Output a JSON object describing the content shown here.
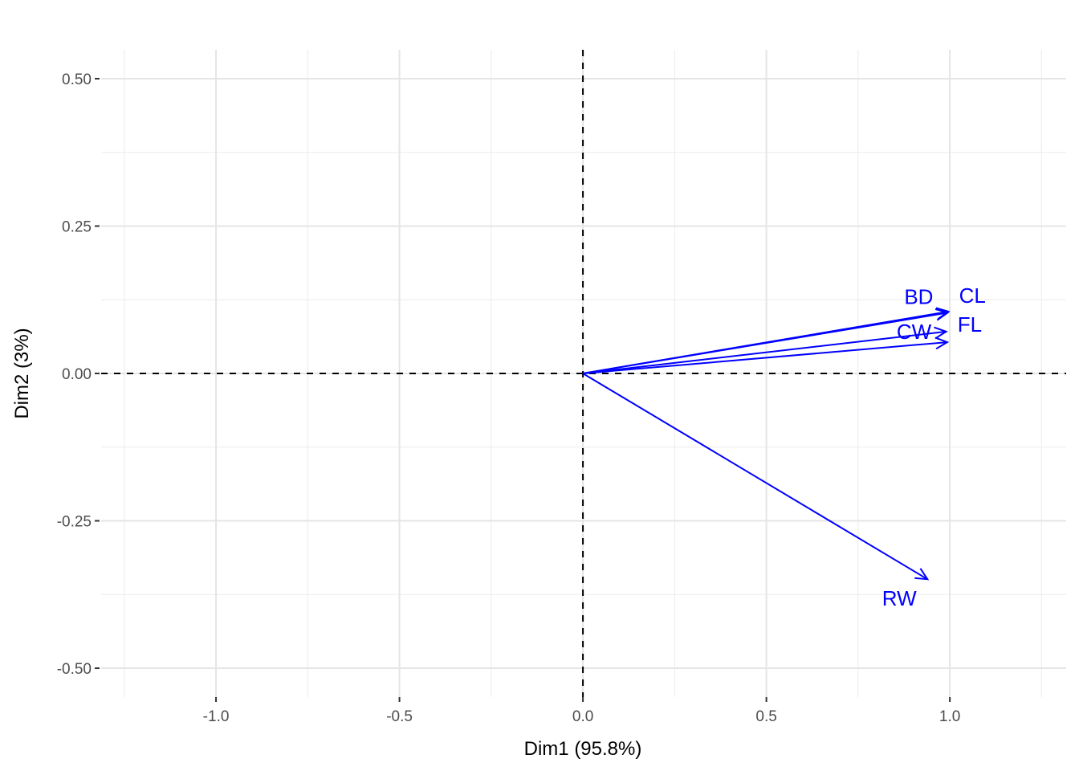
{
  "chart_data": {
    "type": "vector",
    "title": "",
    "xlabel": "Dim1 (95.8%)",
    "ylabel": "Dim2 (3%)",
    "xlim": [
      -1.313,
      1.317
    ],
    "ylim": [
      -0.549,
      0.549
    ],
    "xticks": [
      -1.0,
      -0.5,
      0.0,
      0.5,
      1.0
    ],
    "xtick_labels": [
      "-1.0",
      "-0.5",
      "0.0",
      "0.5",
      "1.0"
    ],
    "yticks": [
      -0.5,
      -0.25,
      0.0,
      0.25,
      0.5
    ],
    "ytick_labels": [
      "-0.50",
      "-0.25",
      "0.00",
      "0.25",
      "0.50"
    ],
    "grid": true,
    "arrow_color": "#0000FF",
    "vectors": [
      {
        "name": "FL",
        "x": 0.993,
        "y": 0.053
      },
      {
        "name": "RW",
        "x": 0.939,
        "y": -0.349
      },
      {
        "name": "CL",
        "x": 0.996,
        "y": 0.105
      },
      {
        "name": "CW",
        "x": 0.99,
        "y": 0.071
      },
      {
        "name": "BD",
        "x": 0.994,
        "y": 0.103
      }
    ]
  }
}
